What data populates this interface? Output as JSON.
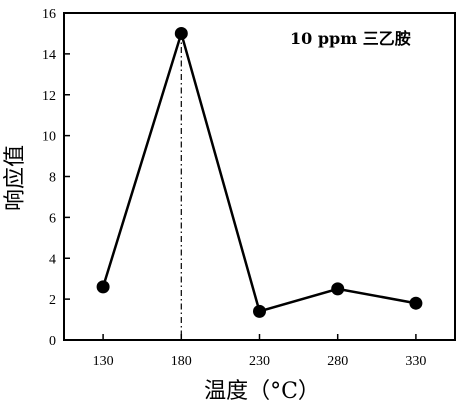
{
  "chart_data": {
    "type": "line",
    "xlabel": "温度（°C）",
    "ylabel": "响应值",
    "annotation": "10 ppm 三乙胺",
    "x": [
      130,
      180,
      230,
      280,
      330
    ],
    "y": [
      2.6,
      15.0,
      1.4,
      2.5,
      1.8
    ],
    "xlim": [
      105,
      355
    ],
    "ylim": [
      0,
      16
    ],
    "xticks": [
      130,
      180,
      230,
      280,
      330
    ],
    "yticks": [
      0,
      2,
      4,
      6,
      8,
      10,
      12,
      14,
      16
    ],
    "reference_line_x": 180,
    "grid": false,
    "line_color": "#000000",
    "marker_color": "#000000"
  }
}
